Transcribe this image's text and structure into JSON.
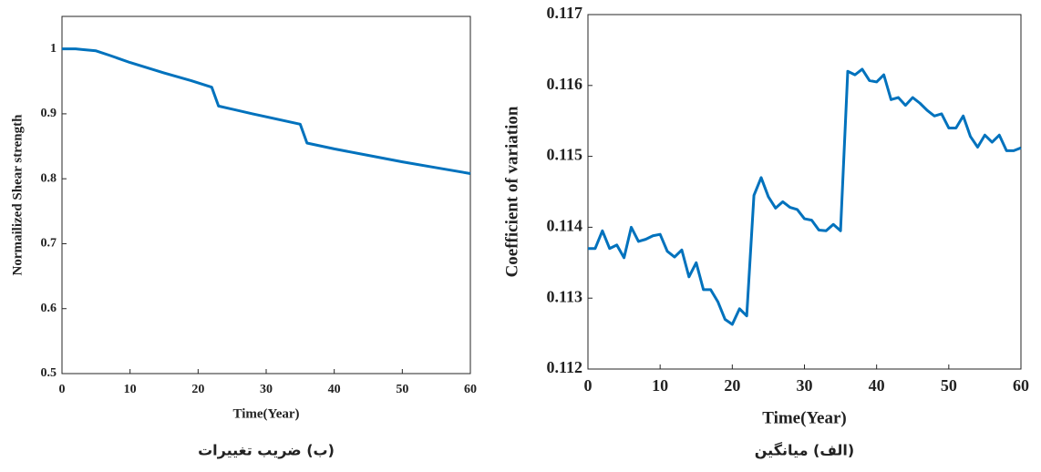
{
  "chart_data": [
    {
      "type": "line",
      "xlabel": "Time(Year)",
      "ylabel": "Normailized Shear strength",
      "caption": "(ب) ضریب تغییرات",
      "xlim": [
        0,
        60
      ],
      "xticks": [
        0,
        10,
        20,
        30,
        40,
        50,
        60
      ],
      "ylim": [
        0.5,
        1.05
      ],
      "yticks": [
        0.5,
        0.6,
        0.7,
        0.8,
        0.9,
        1
      ],
      "series": [
        {
          "color": "#0072bd",
          "x": [
            0,
            2,
            3,
            5,
            7,
            10,
            15,
            19,
            22,
            23,
            28,
            35,
            36,
            40,
            45,
            50,
            55,
            60
          ],
          "values": [
            1,
            1,
            0.999,
            0.997,
            0.99,
            0.979,
            0.963,
            0.951,
            0.941,
            0.912,
            0.9,
            0.884,
            0.855,
            0.846,
            0.836,
            0.826,
            0.817,
            0.808
          ]
        }
      ]
    },
    {
      "type": "line",
      "xlabel": "Time(Year)",
      "ylabel": "Coefficient of variation",
      "caption": "(الف) میانگین",
      "xlim": [
        0,
        60
      ],
      "xticks": [
        0,
        10,
        20,
        30,
        40,
        50,
        60
      ],
      "ylim": [
        0.112,
        0.117
      ],
      "yticks": [
        0.112,
        0.113,
        0.114,
        0.115,
        0.116,
        0.117
      ],
      "series": [
        {
          "color": "#0072bd",
          "x": [
            0,
            1,
            2,
            3,
            4,
            5,
            6,
            7,
            8,
            9,
            10,
            11,
            12,
            13,
            14,
            15,
            16,
            17,
            18,
            19,
            20,
            21,
            22,
            23,
            24,
            25,
            26,
            27,
            28,
            29,
            30,
            31,
            32,
            33,
            34,
            35,
            36,
            37,
            38,
            39,
            40,
            41,
            42,
            43,
            44,
            45,
            46,
            47,
            48,
            49,
            50,
            51,
            52,
            53,
            54,
            55,
            56,
            57,
            58,
            59,
            60
          ],
          "values": [
            0.1137,
            0.1137,
            0.11395,
            0.1137,
            0.11375,
            0.11357,
            0.114,
            0.1138,
            0.11383,
            0.11388,
            0.1139,
            0.11366,
            0.11358,
            0.11368,
            0.1133,
            0.1135,
            0.11312,
            0.11312,
            0.11295,
            0.1127,
            0.11263,
            0.11285,
            0.11275,
            0.11445,
            0.1147,
            0.11443,
            0.11427,
            0.11436,
            0.11428,
            0.11425,
            0.11412,
            0.1141,
            0.11396,
            0.11395,
            0.11404,
            0.11395,
            0.1162,
            0.11615,
            0.11623,
            0.11607,
            0.11605,
            0.11615,
            0.1158,
            0.11583,
            0.11572,
            0.11583,
            0.11575,
            0.11565,
            0.11557,
            0.1156,
            0.1154,
            0.1154,
            0.11557,
            0.11528,
            0.11513,
            0.1153,
            0.1152,
            0.1153,
            0.11508,
            0.11508,
            0.11512
          ]
        }
      ]
    }
  ]
}
